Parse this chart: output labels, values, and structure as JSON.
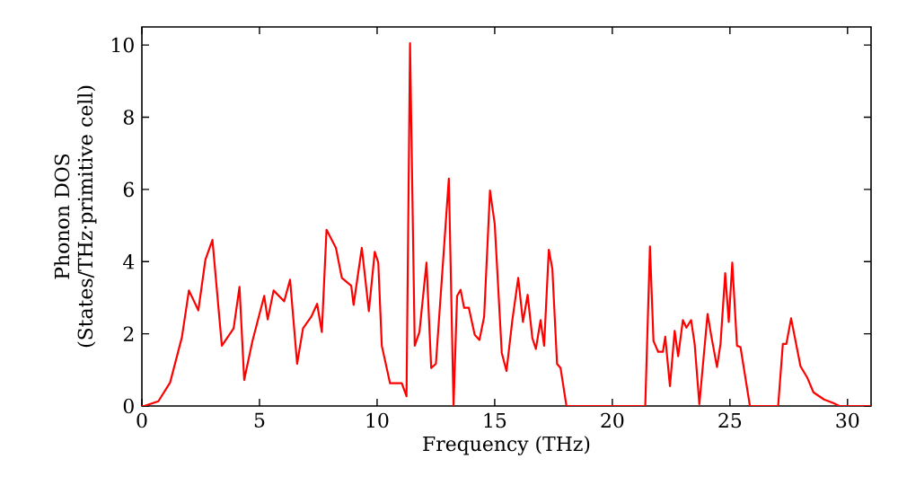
{
  "chart_data": {
    "type": "line",
    "xlabel": "Frequency (THz)",
    "ylabel": "Phonon DOS (States/THz·primitive cell)",
    "xlim": [
      0,
      31
    ],
    "ylim": [
      0,
      10.5
    ],
    "xticks": [
      0,
      5,
      10,
      15,
      20,
      25,
      30
    ],
    "yticks": [
      0,
      2,
      4,
      6,
      8,
      10
    ],
    "grid": false,
    "marker": "none",
    "line_style": "solid",
    "series": [
      {
        "color": "#ff0000",
        "x": [
          0,
          0.1,
          0.7,
          1.2,
          1.7,
          2.0,
          2.4,
          2.7,
          3.0,
          3.4,
          3.9,
          4.15,
          4.35,
          4.7,
          5.2,
          5.35,
          5.6,
          6.05,
          6.3,
          6.6,
          6.85,
          7.2,
          7.45,
          7.65,
          7.85,
          8.25,
          8.5,
          8.9,
          9.0,
          9.35,
          9.65,
          9.9,
          10.05,
          10.2,
          10.55,
          10.8,
          11.05,
          11.25,
          11.4,
          11.6,
          11.8,
          12.1,
          12.3,
          12.5,
          13.05,
          13.25,
          13.4,
          13.55,
          13.7,
          13.9,
          14.15,
          14.35,
          14.55,
          14.8,
          15.0,
          15.3,
          15.5,
          15.75,
          16.0,
          16.2,
          16.4,
          16.6,
          16.75,
          16.95,
          17.1,
          17.3,
          17.45,
          17.65,
          17.8,
          18.05,
          21.4,
          21.6,
          21.75,
          21.95,
          22.15,
          22.25,
          22.45,
          22.65,
          22.8,
          23.0,
          23.15,
          23.35,
          23.5,
          23.7,
          24.05,
          24.2,
          24.45,
          24.6,
          24.8,
          24.95,
          25.1,
          25.3,
          25.45,
          25.85,
          27.05,
          27.25,
          27.4,
          27.6,
          28.0,
          28.3,
          28.55,
          29.0,
          29.4,
          29.65,
          31
        ],
        "values": [
          0,
          0,
          0.13,
          0.65,
          1.9,
          3.2,
          2.65,
          4.05,
          4.6,
          1.67,
          2.15,
          3.3,
          0.72,
          1.8,
          3.05,
          2.4,
          3.2,
          2.9,
          3.5,
          1.17,
          2.15,
          2.47,
          2.83,
          2.05,
          4.88,
          4.38,
          3.55,
          3.33,
          2.8,
          4.38,
          2.63,
          4.27,
          3.97,
          1.67,
          0.63,
          0.63,
          0.63,
          0.27,
          10.05,
          1.67,
          2.05,
          3.97,
          1.05,
          1.17,
          6.3,
          0,
          3.05,
          3.22,
          2.72,
          2.72,
          1.97,
          1.83,
          2.47,
          5.97,
          5.05,
          1.47,
          0.97,
          2.38,
          3.55,
          2.33,
          3.08,
          1.88,
          1.58,
          2.38,
          1.67,
          4.33,
          3.8,
          1.17,
          1.05,
          0,
          0,
          4.42,
          1.8,
          1.5,
          1.5,
          1.92,
          0.55,
          2.08,
          1.38,
          2.38,
          2.17,
          2.38,
          1.72,
          0.05,
          2.55,
          1.97,
          1.08,
          1.72,
          3.68,
          2.33,
          3.97,
          1.67,
          1.63,
          0,
          0,
          1.72,
          1.72,
          2.43,
          1.1,
          0.77,
          0.38,
          0.18,
          0.08,
          0,
          0
        ]
      }
    ]
  }
}
